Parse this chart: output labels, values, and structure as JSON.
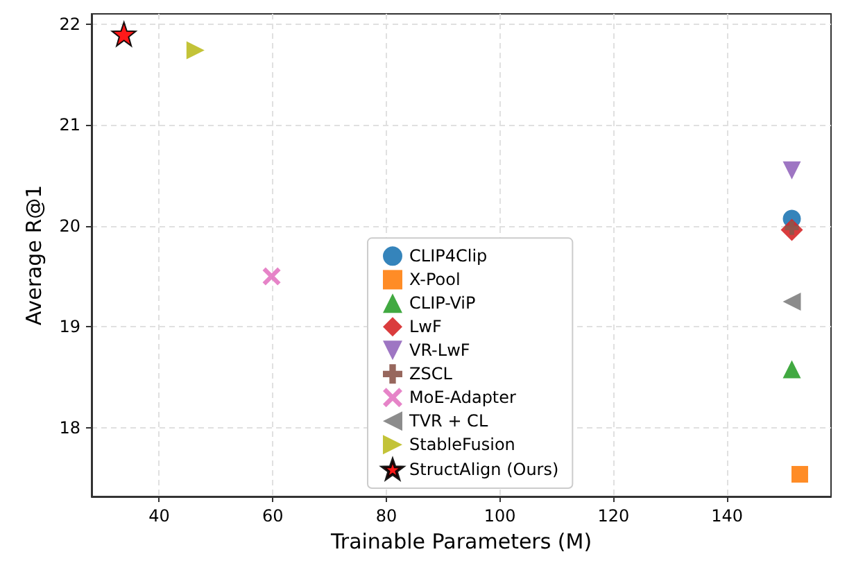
{
  "chart_data": {
    "type": "scatter",
    "xlabel": "Trainable Parameters (M)",
    "ylabel": "Average R@1",
    "xlim": [
      28.1,
      158.3
    ],
    "xticks": [
      40,
      60,
      80,
      100,
      120,
      140
    ],
    "ylim": [
      17.32,
      22.1
    ],
    "yticks": [
      18,
      19,
      20,
      21,
      22
    ],
    "grid": true,
    "legend": "bottom",
    "series": [
      {
        "name": "CLIP4Clip",
        "color": "#1f77b4",
        "marker": "circle",
        "x": [
          151.4
        ],
        "values": [
          20.07
        ]
      },
      {
        "name": "X-Pool",
        "color": "#ff7f0e",
        "marker": "square",
        "x": [
          152.8
        ],
        "values": [
          17.54
        ]
      },
      {
        "name": "CLIP-ViP",
        "color": "#2ca02c",
        "marker": "triangle",
        "x": [
          151.4
        ],
        "values": [
          18.58
        ]
      },
      {
        "name": "LwF",
        "color": "#d62728",
        "marker": "diamond",
        "x": [
          151.4
        ],
        "values": [
          19.96
        ]
      },
      {
        "name": "VR-LwF",
        "color": "#9467bd",
        "marker": "triangle-down",
        "x": [
          151.4
        ],
        "values": [
          20.55
        ]
      },
      {
        "name": "ZSCL",
        "color": "#8c564b",
        "marker": "cross",
        "x": [
          151.4
        ],
        "values": [
          19.98
        ]
      },
      {
        "name": "MoE-Adapter",
        "color": "#e377c2",
        "marker": "x",
        "x": [
          59.8
        ],
        "values": [
          19.5
        ]
      },
      {
        "name": "TVR + CL",
        "color": "#7f7f7f",
        "marker": "triangle-left",
        "x": [
          151.4
        ],
        "values": [
          19.25
        ]
      },
      {
        "name": "StableFusion",
        "color": "#bcbd22",
        "marker": "triangle-right",
        "x": [
          46.4
        ],
        "values": [
          21.74
        ]
      },
      {
        "name": "StructAlign (Ours)",
        "color": "#ff0000",
        "marker": "star",
        "x": [
          33.8
        ],
        "values": [
          21.9
        ]
      }
    ]
  }
}
